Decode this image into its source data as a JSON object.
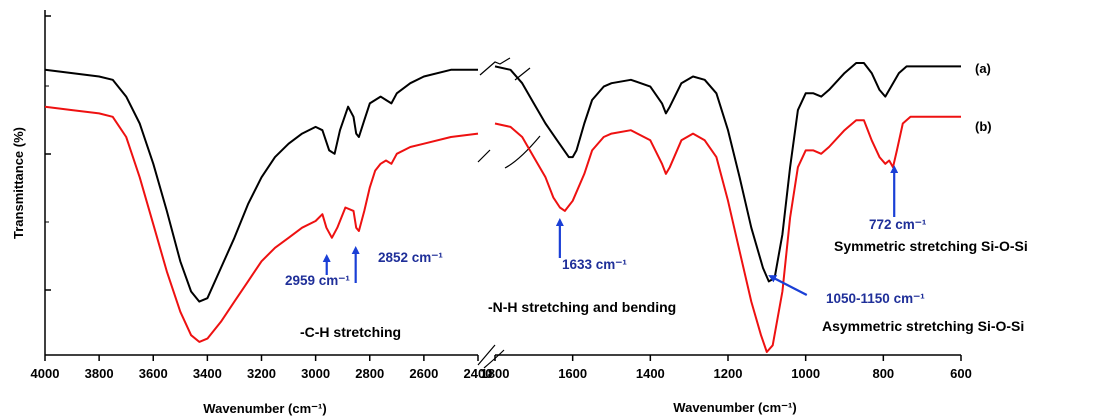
{
  "chart_data": {
    "type": "line",
    "title": "",
    "ylabel": "Transmittance (%)",
    "xlabels": [
      "Wavenumber (cm⁻¹)",
      "Wavenumber  (cm⁻¹)"
    ],
    "x_axis_break": true,
    "panels": [
      {
        "xlim": [
          4000,
          2400
        ],
        "ticks": [
          "4000",
          "3800",
          "3600",
          "3400",
          "3200",
          "3000",
          "2800",
          "2600",
          "2400"
        ]
      },
      {
        "xlim": [
          1800,
          600
        ],
        "ticks": [
          "1800",
          "1600",
          "1400",
          "1200",
          "1000",
          "800",
          "600"
        ]
      }
    ],
    "ylim": [
      0,
      1
    ],
    "grid": false,
    "series": [
      {
        "name": "(a)",
        "color": "#000000",
        "segments": [
          [
            [
              4000,
              0.84
            ],
            [
              3900,
              0.83
            ],
            [
              3800,
              0.82
            ],
            [
              3750,
              0.81
            ],
            [
              3700,
              0.76
            ],
            [
              3650,
              0.68
            ],
            [
              3600,
              0.56
            ],
            [
              3550,
              0.42
            ],
            [
              3500,
              0.27
            ],
            [
              3460,
              0.18
            ],
            [
              3430,
              0.15
            ],
            [
              3400,
              0.16
            ],
            [
              3350,
              0.25
            ],
            [
              3300,
              0.34
            ],
            [
              3250,
              0.44
            ],
            [
              3200,
              0.52
            ],
            [
              3150,
              0.58
            ],
            [
              3100,
              0.62
            ],
            [
              3050,
              0.65
            ],
            [
              3000,
              0.67
            ],
            [
              2975,
              0.66
            ],
            [
              2950,
              0.6
            ],
            [
              2930,
              0.59
            ],
            [
              2910,
              0.66
            ],
            [
              2880,
              0.73
            ],
            [
              2860,
              0.7
            ],
            [
              2850,
              0.65
            ],
            [
              2840,
              0.64
            ],
            [
              2820,
              0.69
            ],
            [
              2800,
              0.74
            ],
            [
              2780,
              0.75
            ],
            [
              2760,
              0.76
            ],
            [
              2740,
              0.75
            ],
            [
              2720,
              0.74
            ],
            [
              2700,
              0.77
            ],
            [
              2650,
              0.8
            ],
            [
              2600,
              0.82
            ],
            [
              2500,
              0.84
            ],
            [
              2400,
              0.84
            ]
          ],
          [
            [
              1800,
              0.85
            ],
            [
              1760,
              0.84
            ],
            [
              1730,
              0.8
            ],
            [
              1700,
              0.74
            ],
            [
              1670,
              0.68
            ],
            [
              1640,
              0.63
            ],
            [
              1610,
              0.58
            ],
            [
              1600,
              0.58
            ],
            [
              1590,
              0.6
            ],
            [
              1570,
              0.68
            ],
            [
              1550,
              0.75
            ],
            [
              1520,
              0.79
            ],
            [
              1500,
              0.8
            ],
            [
              1450,
              0.81
            ],
            [
              1400,
              0.79
            ],
            [
              1370,
              0.74
            ],
            [
              1360,
              0.71
            ],
            [
              1350,
              0.73
            ],
            [
              1320,
              0.8
            ],
            [
              1290,
              0.82
            ],
            [
              1260,
              0.81
            ],
            [
              1230,
              0.77
            ],
            [
              1200,
              0.66
            ],
            [
              1170,
              0.52
            ],
            [
              1140,
              0.37
            ],
            [
              1110,
              0.25
            ],
            [
              1095,
              0.21
            ],
            [
              1080,
              0.22
            ],
            [
              1060,
              0.35
            ],
            [
              1040,
              0.55
            ],
            [
              1020,
              0.72
            ],
            [
              1000,
              0.77
            ],
            [
              980,
              0.77
            ],
            [
              960,
              0.76
            ],
            [
              940,
              0.78
            ],
            [
              900,
              0.83
            ],
            [
              870,
              0.86
            ],
            [
              850,
              0.86
            ],
            [
              830,
              0.83
            ],
            [
              810,
              0.78
            ],
            [
              795,
              0.76
            ],
            [
              780,
              0.79
            ],
            [
              760,
              0.83
            ],
            [
              740,
              0.85
            ],
            [
              700,
              0.85
            ],
            [
              600,
              0.85
            ]
          ]
        ]
      },
      {
        "name": "(b)",
        "color": "#ee1111",
        "segments": [
          [
            [
              4000,
              0.73
            ],
            [
              3900,
              0.72
            ],
            [
              3800,
              0.71
            ],
            [
              3750,
              0.7
            ],
            [
              3700,
              0.64
            ],
            [
              3650,
              0.52
            ],
            [
              3600,
              0.38
            ],
            [
              3550,
              0.24
            ],
            [
              3500,
              0.12
            ],
            [
              3460,
              0.05
            ],
            [
              3430,
              0.03
            ],
            [
              3400,
              0.04
            ],
            [
              3350,
              0.09
            ],
            [
              3300,
              0.15
            ],
            [
              3250,
              0.21
            ],
            [
              3200,
              0.27
            ],
            [
              3150,
              0.31
            ],
            [
              3100,
              0.34
            ],
            [
              3050,
              0.37
            ],
            [
              3000,
              0.39
            ],
            [
              2975,
              0.41
            ],
            [
              2960,
              0.37
            ],
            [
              2940,
              0.34
            ],
            [
              2920,
              0.37
            ],
            [
              2890,
              0.43
            ],
            [
              2860,
              0.42
            ],
            [
              2850,
              0.37
            ],
            [
              2840,
              0.36
            ],
            [
              2820,
              0.42
            ],
            [
              2800,
              0.49
            ],
            [
              2780,
              0.54
            ],
            [
              2760,
              0.56
            ],
            [
              2740,
              0.57
            ],
            [
              2720,
              0.56
            ],
            [
              2700,
              0.59
            ],
            [
              2650,
              0.61
            ],
            [
              2600,
              0.62
            ],
            [
              2500,
              0.64
            ],
            [
              2400,
              0.65
            ]
          ],
          [
            [
              1800,
              0.68
            ],
            [
              1760,
              0.67
            ],
            [
              1730,
              0.64
            ],
            [
              1700,
              0.58
            ],
            [
              1670,
              0.52
            ],
            [
              1650,
              0.46
            ],
            [
              1633,
              0.43
            ],
            [
              1620,
              0.42
            ],
            [
              1600,
              0.45
            ],
            [
              1570,
              0.53
            ],
            [
              1550,
              0.6
            ],
            [
              1520,
              0.64
            ],
            [
              1500,
              0.65
            ],
            [
              1450,
              0.66
            ],
            [
              1400,
              0.63
            ],
            [
              1370,
              0.56
            ],
            [
              1360,
              0.53
            ],
            [
              1350,
              0.55
            ],
            [
              1320,
              0.63
            ],
            [
              1290,
              0.65
            ],
            [
              1260,
              0.63
            ],
            [
              1230,
              0.58
            ],
            [
              1200,
              0.45
            ],
            [
              1170,
              0.3
            ],
            [
              1140,
              0.15
            ],
            [
              1115,
              0.05
            ],
            [
              1100,
              0.0
            ],
            [
              1085,
              0.02
            ],
            [
              1060,
              0.18
            ],
            [
              1040,
              0.4
            ],
            [
              1020,
              0.55
            ],
            [
              1000,
              0.6
            ],
            [
              980,
              0.6
            ],
            [
              960,
              0.59
            ],
            [
              940,
              0.61
            ],
            [
              900,
              0.66
            ],
            [
              870,
              0.69
            ],
            [
              850,
              0.69
            ],
            [
              830,
              0.63
            ],
            [
              810,
              0.58
            ],
            [
              795,
              0.56
            ],
            [
              785,
              0.57
            ],
            [
              775,
              0.55
            ],
            [
              765,
              0.6
            ],
            [
              750,
              0.68
            ],
            [
              730,
              0.7
            ],
            [
              700,
              0.7
            ],
            [
              600,
              0.7
            ]
          ]
        ]
      }
    ],
    "annotations": [
      {
        "label": "2959 cm⁻¹",
        "x": 2959
      },
      {
        "label": "2852 cm⁻¹",
        "x": 2852
      },
      {
        "label": "1633 cm⁻¹",
        "x": 1633
      },
      {
        "label": "1050-1150 cm⁻¹",
        "x": 1095
      },
      {
        "label": "772 cm⁻¹",
        "x": 772
      }
    ],
    "notes": [
      "-C-H stretching",
      "-N-H stretching and bending",
      "Asymmetric stretching Si-O-Si",
      "Symmetric stretching Si-O-Si"
    ],
    "arrow_color": "#1a3fd6"
  }
}
